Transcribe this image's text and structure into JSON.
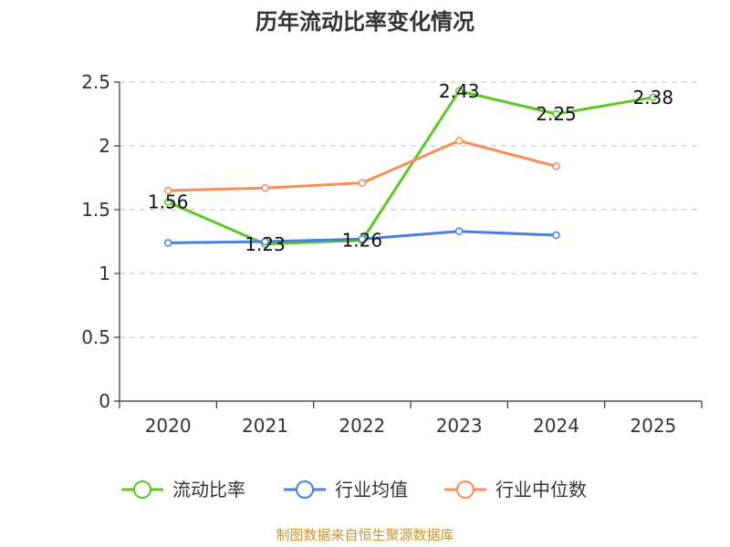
{
  "chart_data": {
    "type": "line",
    "title": "历年流动比率变化情况",
    "categories": [
      "2020",
      "2021",
      "2022",
      "2023",
      "2024",
      "2025"
    ],
    "y_ticks": [
      "0",
      "0.5",
      "1",
      "1.5",
      "2",
      "2.5"
    ],
    "ylim": [
      0,
      2.5
    ],
    "grid": true,
    "legend_position": "bottom",
    "series": [
      {
        "name": "流动比率",
        "color": "#5cc623",
        "values": [
          1.56,
          1.23,
          1.26,
          2.43,
          2.25,
          2.38
        ],
        "labels": [
          "1.56",
          "1.23",
          "1.26",
          "2.43",
          "2.25",
          "2.38"
        ]
      },
      {
        "name": "行业均值",
        "color": "#4a7fdb",
        "values": [
          1.24,
          1.25,
          1.27,
          1.33,
          1.3,
          null
        ]
      },
      {
        "name": "行业中位数",
        "color": "#f98e54",
        "values": [
          1.65,
          1.67,
          1.71,
          2.04,
          1.84,
          null
        ]
      }
    ],
    "source": "制图数据来自恒生聚源数据库"
  }
}
